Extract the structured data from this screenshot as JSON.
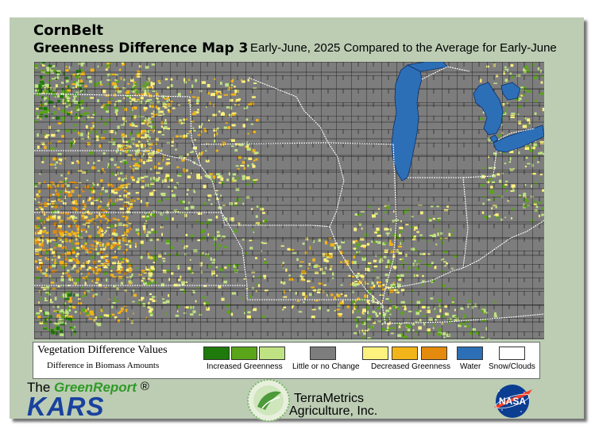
{
  "title": {
    "region": "CornBelt",
    "map_name": "Greenness Difference Map 3",
    "subtitle": "Early-June, 2025 Compared to the Average for Early-June"
  },
  "legend": {
    "heading": "Vegetation Difference Values",
    "subheading": "Difference in Biomass Amounts",
    "swatches": [
      "#1e7a0a",
      "#5aa51a",
      "#bfe283",
      "#7d7d7d",
      "#fdf27d",
      "#f2b519",
      "#e48a0d",
      "#2d6fb6",
      "#ffffff"
    ],
    "labels": {
      "increased": "Increased Greenness",
      "no_change": "Little or no Change",
      "decreased": "Decreased Greenness",
      "water": "Water",
      "snow": "Snow/Clouds"
    }
  },
  "logos": {
    "greenreport_the": "The",
    "greenreport_name": "GreenReport",
    "greenreport_mark": "®",
    "kars": "KARS",
    "terrametrics_line1": "TerraMetrics",
    "terrametrics_line2": "Agriculture, Inc.",
    "nasa": "NASA"
  },
  "colors": {
    "frame_background": "#bccdb4",
    "no_change_gray": "#7d7d7d",
    "county_line": "#141414",
    "state_line": "#ffffff",
    "water": "#2d6fb6"
  }
}
